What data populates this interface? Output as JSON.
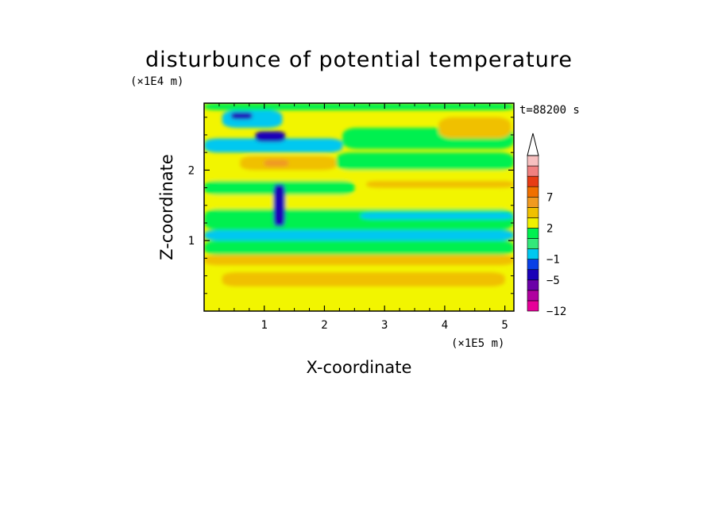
{
  "chart_data": {
    "type": "heatmap",
    "title": "disturbunce of potential temperature",
    "xlabel": "X-coordinate",
    "ylabel": "Z-coordinate",
    "x_unit": "(×1E5 m)",
    "y_unit": "(×1E4 m)",
    "time_label": "t=88200 s",
    "xlim": [
      0,
      5.15
    ],
    "ylim": [
      0,
      2.95
    ],
    "x_ticks": [
      1,
      2,
      3,
      4,
      5
    ],
    "y_ticks": [
      1,
      2
    ],
    "x_tick_labels": [
      "1",
      "2",
      "3",
      "4",
      "5"
    ],
    "y_tick_labels": [
      "1",
      "2"
    ],
    "colorbar": {
      "levels": [
        -12,
        -10,
        -8,
        -5,
        -3,
        -1,
        0,
        1,
        2,
        4,
        5,
        7,
        8,
        10,
        12
      ],
      "labeled": [
        {
          "value": -12,
          "label": "−12"
        },
        {
          "value": -5,
          "label": "−5"
        },
        {
          "value": -1,
          "label": "−1"
        },
        {
          "value": 2,
          "label": "2"
        },
        {
          "value": 7,
          "label": "7"
        }
      ],
      "colors": [
        "#e60099",
        "#b0009f",
        "#6b00a8",
        "#1a00b8",
        "#0a40e6",
        "#00c8f0",
        "#33e87a",
        "#00f050",
        "#f0f000",
        "#f0c000",
        "#f09a20",
        "#f07000",
        "#e83c14",
        "#f08080",
        "#f7c0c0"
      ],
      "extend_top_color": "#ffffff"
    },
    "field": {
      "background_color": "#f2f500",
      "regions": [
        {
          "level_color": "#f0c000",
          "x": [
            0.3,
            5.0
          ],
          "z": [
            0.35,
            0.55
          ]
        },
        {
          "level_color": "#f0c000",
          "x": [
            0.0,
            5.15
          ],
          "z": [
            0.65,
            0.8
          ]
        },
        {
          "level_color": "#00f050",
          "x": [
            0.0,
            5.15
          ],
          "z": [
            0.8,
            1.0
          ]
        },
        {
          "level_color": "#00c8f0",
          "x": [
            0.0,
            5.15
          ],
          "z": [
            1.0,
            1.15
          ]
        },
        {
          "level_color": "#00f050",
          "x": [
            0.0,
            5.15
          ],
          "z": [
            1.15,
            1.45
          ]
        },
        {
          "level_color": "#00c8f0",
          "x": [
            2.6,
            5.15
          ],
          "z": [
            1.3,
            1.4
          ]
        },
        {
          "level_color": "#f2f500",
          "x": [
            0.0,
            5.15
          ],
          "z": [
            1.45,
            1.65
          ]
        },
        {
          "level_color": "#00f050",
          "x": [
            0.0,
            2.5
          ],
          "z": [
            1.65,
            1.85
          ]
        },
        {
          "level_color": "#f0c000",
          "x": [
            2.7,
            5.15
          ],
          "z": [
            1.75,
            1.85
          ]
        },
        {
          "level_color": "#f2f500",
          "x": [
            0.0,
            5.15
          ],
          "z": [
            1.85,
            2.0
          ]
        },
        {
          "level_color": "#f0c000",
          "x": [
            0.6,
            2.2
          ],
          "z": [
            2.0,
            2.2
          ]
        },
        {
          "level_color": "#f09a20",
          "x": [
            1.0,
            1.4
          ],
          "z": [
            2.05,
            2.15
          ]
        },
        {
          "level_color": "#00f050",
          "x": [
            2.2,
            5.15
          ],
          "z": [
            2.0,
            2.25
          ]
        },
        {
          "level_color": "#00c8f0",
          "x": [
            0.0,
            2.3
          ],
          "z": [
            2.25,
            2.45
          ]
        },
        {
          "level_color": "#1a00b8",
          "x": [
            0.85,
            1.35
          ],
          "z": [
            2.4,
            2.55
          ]
        },
        {
          "level_color": "#00f050",
          "x": [
            2.3,
            5.15
          ],
          "z": [
            2.3,
            2.6
          ]
        },
        {
          "level_color": "#f0c000",
          "x": [
            3.9,
            5.1
          ],
          "z": [
            2.45,
            2.75
          ]
        },
        {
          "level_color": "#00c8f0",
          "x": [
            0.3,
            1.3
          ],
          "z": [
            2.6,
            2.85
          ]
        },
        {
          "level_color": "#1a00b8",
          "x": [
            0.45,
            0.8
          ],
          "z": [
            2.72,
            2.82
          ]
        },
        {
          "level_color": "#00f050",
          "x": [
            0.0,
            5.15
          ],
          "z": [
            2.85,
            2.95
          ]
        },
        {
          "level_color": "#1a00b8",
          "x": [
            1.15,
            1.35
          ],
          "z": [
            1.2,
            1.8
          ]
        }
      ]
    }
  }
}
